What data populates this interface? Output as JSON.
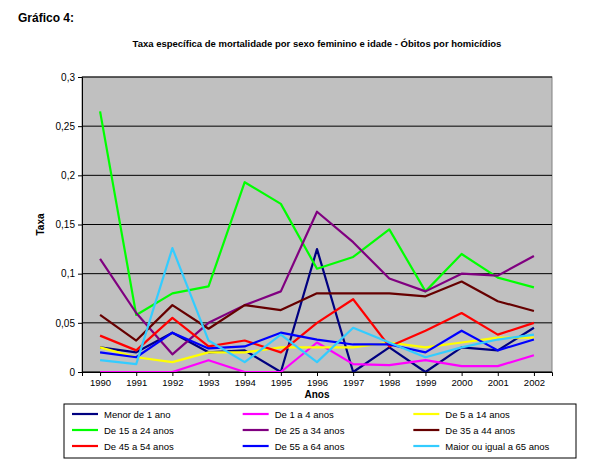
{
  "heading": "Gráfico 4:",
  "chart_data": {
    "type": "line",
    "title": "Taxa específica de mortalidade por sexo feminino e idade - Óbitos por homicídios",
    "x_label": "Anos",
    "y_label": "Taxa",
    "categories": [
      "1990",
      "1991",
      "1992",
      "1993",
      "1994",
      "1995",
      "1996",
      "1997",
      "1998",
      "1999",
      "2000",
      "2001",
      "2002"
    ],
    "ylim": [
      0,
      0.3
    ],
    "yticks": [
      0,
      {
        "value": 0.05,
        "label": "0,05"
      },
      {
        "value": 0.1,
        "label": "0,1"
      },
      {
        "value": 0.15,
        "label": "0,15"
      },
      {
        "value": 0.2,
        "label": "0,2"
      },
      {
        "value": 0.25,
        "label": "0,25"
      },
      {
        "value": 0.3,
        "label": "0,3"
      }
    ],
    "grid": true,
    "legend": "bottom",
    "series": [
      {
        "name": "Menor de 1 ano",
        "color": "#000080",
        "values": [
          0.025,
          0.02,
          0.04,
          0.02,
          0.022,
          0.0,
          0.125,
          0.0,
          0.025,
          0.0,
          0.025,
          0.022,
          0.045
        ]
      },
      {
        "name": "De 1 a 4 anos",
        "color": "#ff00ff",
        "values": [
          0.0,
          0.0,
          0.0,
          0.012,
          0.0,
          0.0,
          0.03,
          0.008,
          0.007,
          0.012,
          0.006,
          0.006,
          0.017
        ]
      },
      {
        "name": "De 5 a 14 anos",
        "color": "#ffff00",
        "values": [
          0.025,
          0.015,
          0.01,
          0.02,
          0.02,
          0.025,
          0.025,
          0.025,
          0.03,
          0.025,
          0.03,
          0.035,
          0.035
        ]
      },
      {
        "name": "De 15 a 24 anos",
        "color": "#00ff00",
        "values": [
          0.265,
          0.058,
          0.08,
          0.087,
          0.193,
          0.171,
          0.105,
          0.117,
          0.145,
          0.082,
          0.12,
          0.096,
          0.086
        ]
      },
      {
        "name": "De 25 a 34 anos",
        "color": "#800080",
        "values": [
          0.115,
          0.06,
          0.018,
          0.05,
          0.068,
          0.082,
          0.163,
          0.132,
          0.095,
          0.082,
          0.1,
          0.098,
          0.118
        ]
      },
      {
        "name": "De 35 a 44 anos",
        "color": "#660000",
        "values": [
          0.058,
          0.032,
          0.068,
          0.044,
          0.068,
          0.063,
          0.08,
          0.08,
          0.08,
          0.077,
          0.092,
          0.072,
          0.062
        ]
      },
      {
        "name": "De 45 a 54 anos",
        "color": "#ff0000",
        "values": [
          0.037,
          0.022,
          0.055,
          0.026,
          0.032,
          0.02,
          0.05,
          0.074,
          0.026,
          0.042,
          0.06,
          0.038,
          0.05
        ]
      },
      {
        "name": "De 55 a 64 anos",
        "color": "#0000ff",
        "values": [
          0.02,
          0.015,
          0.04,
          0.024,
          0.026,
          0.04,
          0.033,
          0.028,
          0.028,
          0.02,
          0.042,
          0.022,
          0.033
        ]
      },
      {
        "name": "Maior ou igual a 65 anos",
        "color": "#33ccff",
        "values": [
          0.012,
          0.008,
          0.126,
          0.032,
          0.01,
          0.038,
          0.01,
          0.045,
          0.03,
          0.015,
          0.025,
          0.033,
          0.038
        ]
      }
    ]
  }
}
